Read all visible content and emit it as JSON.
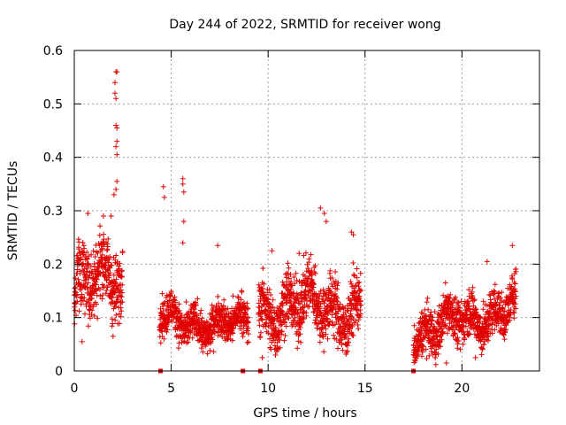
{
  "chart_data": {
    "type": "scatter",
    "title": "Day 244 of 2022, SRMTID for receiver wong",
    "xlabel": "GPS time / hours",
    "ylabel": "SRMTID / TECUs",
    "xlim": [
      0,
      24
    ],
    "ylim": [
      0,
      0.6
    ],
    "xticks": [
      0,
      5,
      10,
      15,
      20
    ],
    "xtick_labels": [
      "0",
      "5",
      "10",
      "15",
      "20"
    ],
    "yticks": [
      0,
      0.1,
      0.2,
      0.3,
      0.4,
      0.5,
      0.6
    ],
    "ytick_labels": [
      "0",
      "0.1",
      "0.2",
      "0.3",
      "0.4",
      "0.5",
      "0.6"
    ],
    "grid": true,
    "marker": "+",
    "color": "#e00000",
    "series": [
      {
        "name": "SRMTID",
        "segments": [
          {
            "start": 0.0,
            "end": 2.5,
            "base": 0.14,
            "trend": 0.05,
            "spread": 0.045
          },
          {
            "start": 4.4,
            "end": 9.0,
            "base": 0.095,
            "trend": -0.01,
            "spread": 0.025
          },
          {
            "start": 9.5,
            "end": 14.8,
            "base": 0.12,
            "trend": 0.0,
            "spread": 0.04
          },
          {
            "start": 17.5,
            "end": 22.8,
            "base": 0.065,
            "trend": 0.06,
            "spread": 0.03
          }
        ],
        "outliers": [
          {
            "x": 2.15,
            "y": 0.56
          },
          {
            "x": 2.2,
            "y": 0.56
          },
          {
            "x": 2.1,
            "y": 0.54
          },
          {
            "x": 2.1,
            "y": 0.52
          },
          {
            "x": 2.15,
            "y": 0.51
          },
          {
            "x": 2.15,
            "y": 0.46
          },
          {
            "x": 2.2,
            "y": 0.455
          },
          {
            "x": 2.2,
            "y": 0.43
          },
          {
            "x": 2.15,
            "y": 0.42
          },
          {
            "x": 2.2,
            "y": 0.405
          },
          {
            "x": 2.2,
            "y": 0.355
          },
          {
            "x": 2.15,
            "y": 0.34
          },
          {
            "x": 2.05,
            "y": 0.33
          },
          {
            "x": 4.6,
            "y": 0.345
          },
          {
            "x": 4.65,
            "y": 0.325
          },
          {
            "x": 5.6,
            "y": 0.36
          },
          {
            "x": 5.6,
            "y": 0.35
          },
          {
            "x": 5.65,
            "y": 0.335
          },
          {
            "x": 5.65,
            "y": 0.28
          },
          {
            "x": 5.6,
            "y": 0.24
          },
          {
            "x": 12.7,
            "y": 0.305
          },
          {
            "x": 12.9,
            "y": 0.295
          },
          {
            "x": 13.0,
            "y": 0.28
          },
          {
            "x": 14.3,
            "y": 0.26
          },
          {
            "x": 14.4,
            "y": 0.255
          },
          {
            "x": 0.7,
            "y": 0.295
          },
          {
            "x": 1.5,
            "y": 0.29
          },
          {
            "x": 1.9,
            "y": 0.29
          },
          {
            "x": 10.2,
            "y": 0.225
          },
          {
            "x": 11.6,
            "y": 0.22
          },
          {
            "x": 7.4,
            "y": 0.235
          },
          {
            "x": 22.6,
            "y": 0.235
          },
          {
            "x": 21.3,
            "y": 0.205
          },
          {
            "x": 2.0,
            "y": 0.065
          },
          {
            "x": 0.4,
            "y": 0.055
          },
          {
            "x": 20.7,
            "y": 0.025
          },
          {
            "x": 19.2,
            "y": 0.015
          },
          {
            "x": 9.7,
            "y": 0.025
          }
        ],
        "zero_markers": [
          4.45,
          8.7,
          9.6,
          17.5
        ]
      }
    ]
  }
}
